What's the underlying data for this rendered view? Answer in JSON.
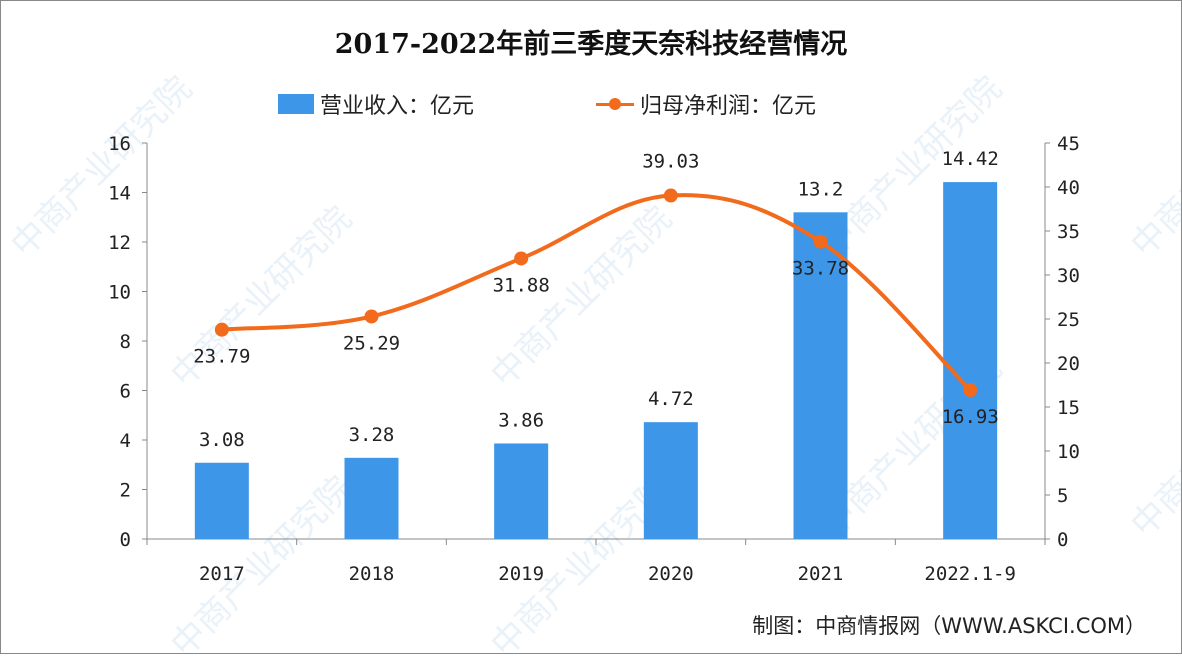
{
  "chart_data": {
    "type": "bar+line",
    "title": "2017-2022年前三季度天奈科技经营情况",
    "categories": [
      "2017",
      "2018",
      "2019",
      "2020",
      "2021",
      "2022.1-9"
    ],
    "series": [
      {
        "name": "营业收入：亿元",
        "type": "bar",
        "axis": "left",
        "color": "#3d96e8",
        "values": [
          3.08,
          3.28,
          3.86,
          4.72,
          13.2,
          14.42
        ],
        "labels": [
          "3.08",
          "3.28",
          "3.86",
          "4.72",
          "13.2",
          "14.42"
        ]
      },
      {
        "name": "归母净利润：亿元",
        "type": "line",
        "axis": "right",
        "color": "#f26a1b",
        "values": [
          23.79,
          25.29,
          31.88,
          39.03,
          33.78,
          16.93
        ],
        "labels": [
          "23.79",
          "25.29",
          "31.88",
          "39.03",
          "33.78",
          "16.93"
        ]
      }
    ],
    "y_left": {
      "ylim": [
        0,
        16
      ],
      "ticks": [
        "0",
        "2",
        "4",
        "6",
        "8",
        "10",
        "12",
        "14",
        "16"
      ]
    },
    "y_right": {
      "ylim": [
        0,
        45
      ],
      "ticks": [
        "0",
        "5",
        "10",
        "15",
        "20",
        "25",
        "30",
        "35",
        "40",
        "45"
      ]
    },
    "grid": false,
    "legend": "top"
  },
  "source": "制图：中商情报网（WWW.ASKCI.COM）",
  "watermark": "中商产业研究院"
}
